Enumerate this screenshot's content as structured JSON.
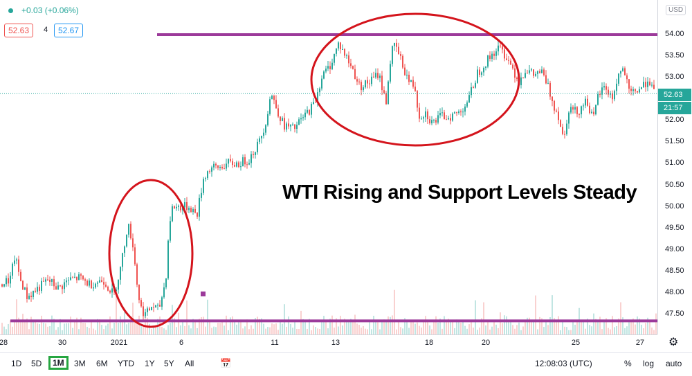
{
  "header": {
    "change_text": "+0.03 (+0.06%)",
    "bid": "52.63",
    "spread": "4",
    "ask": "52.67",
    "currency": "USD"
  },
  "annotation_text": "WTI Rising and Support Levels Steady",
  "price_tag": {
    "price": "52.63",
    "countdown": "21:57"
  },
  "time_ranges": [
    "1D",
    "5D",
    "1M",
    "3M",
    "6M",
    "YTD",
    "1Y",
    "5Y",
    "All"
  ],
  "active_range": "1M",
  "clock": "12:08:03 (UTC)",
  "scale_buttons": {
    "percent": "%",
    "log": "log",
    "auto": "auto"
  },
  "colors": {
    "up": "#26a69a",
    "down": "#ef5350",
    "annotation_line": "#9c3a9a",
    "ellipse": "#d4141c"
  },
  "chart_data": {
    "type": "candlestick",
    "title": "",
    "xlabel": "",
    "ylabel": "",
    "ylim": [
      47.25,
      54.4
    ],
    "y_ticks": [
      "54.00",
      "53.50",
      "53.00",
      "52.50",
      "52.00",
      "51.50",
      "51.00",
      "50.50",
      "50.00",
      "49.50",
      "49.00",
      "48.50",
      "48.00",
      "47.50"
    ],
    "x_ticks": [
      "28",
      "30",
      "2021",
      "6",
      "11",
      "13",
      "18",
      "20",
      "25",
      "27"
    ],
    "last_price": 52.63,
    "horizontal_lines": [
      54.0,
      47.35
    ],
    "close_path": [
      [
        0,
        48.2
      ],
      [
        15,
        48.3
      ],
      [
        22,
        48.85
      ],
      [
        30,
        48.3
      ],
      [
        40,
        47.9
      ],
      [
        55,
        48.1
      ],
      [
        70,
        48.3
      ],
      [
        85,
        48.1
      ],
      [
        100,
        48.3
      ],
      [
        115,
        48.35
      ],
      [
        130,
        48.2
      ],
      [
        150,
        48.3
      ],
      [
        165,
        47.95
      ],
      [
        175,
        48.6
      ],
      [
        185,
        49.6
      ],
      [
        192,
        49.2
      ],
      [
        200,
        48.0
      ],
      [
        205,
        47.6
      ],
      [
        212,
        47.5
      ],
      [
        220,
        47.7
      ],
      [
        230,
        47.6
      ],
      [
        240,
        48.3
      ],
      [
        245,
        49.6
      ],
      [
        250,
        50.0
      ],
      [
        262,
        50.0
      ],
      [
        275,
        50.0
      ],
      [
        285,
        49.8
      ],
      [
        295,
        50.7
      ],
      [
        305,
        50.9
      ],
      [
        315,
        50.9
      ],
      [
        330,
        51.0
      ],
      [
        345,
        51.0
      ],
      [
        360,
        51.1
      ],
      [
        375,
        51.5
      ],
      [
        385,
        52.0
      ],
      [
        392,
        52.65
      ],
      [
        400,
        52.3
      ],
      [
        410,
        51.9
      ],
      [
        425,
        51.8
      ],
      [
        440,
        52.1
      ],
      [
        455,
        52.4
      ],
      [
        465,
        53.0
      ],
      [
        478,
        53.3
      ],
      [
        490,
        53.8
      ],
      [
        500,
        53.5
      ],
      [
        510,
        53.2
      ],
      [
        520,
        52.8
      ],
      [
        535,
        52.9
      ],
      [
        548,
        53.1
      ],
      [
        558,
        52.4
      ],
      [
        566,
        53.6
      ],
      [
        572,
        53.75
      ],
      [
        582,
        53.3
      ],
      [
        592,
        52.9
      ],
      [
        600,
        52.8
      ],
      [
        606,
        52.1
      ],
      [
        615,
        52.2
      ],
      [
        625,
        51.95
      ],
      [
        638,
        52.1
      ],
      [
        650,
        52.1
      ],
      [
        665,
        52.2
      ],
      [
        678,
        52.5
      ],
      [
        690,
        53.1
      ],
      [
        700,
        53.3
      ],
      [
        712,
        53.55
      ],
      [
        722,
        53.7
      ],
      [
        732,
        53.5
      ],
      [
        742,
        53.2
      ],
      [
        750,
        52.9
      ],
      [
        760,
        53.2
      ],
      [
        772,
        53.05
      ],
      [
        782,
        53.15
      ],
      [
        790,
        52.9
      ],
      [
        800,
        52.4
      ],
      [
        808,
        52.1
      ],
      [
        815,
        51.55
      ],
      [
        822,
        52.3
      ],
      [
        835,
        52.2
      ],
      [
        848,
        52.5
      ],
      [
        858,
        52.0
      ],
      [
        865,
        52.6
      ],
      [
        875,
        52.8
      ],
      [
        885,
        52.5
      ],
      [
        895,
        53.1
      ],
      [
        902,
        53.2
      ],
      [
        910,
        52.6
      ],
      [
        920,
        52.7
      ],
      [
        930,
        52.8
      ],
      [
        938,
        53.0
      ],
      [
        945,
        52.63
      ]
    ]
  }
}
